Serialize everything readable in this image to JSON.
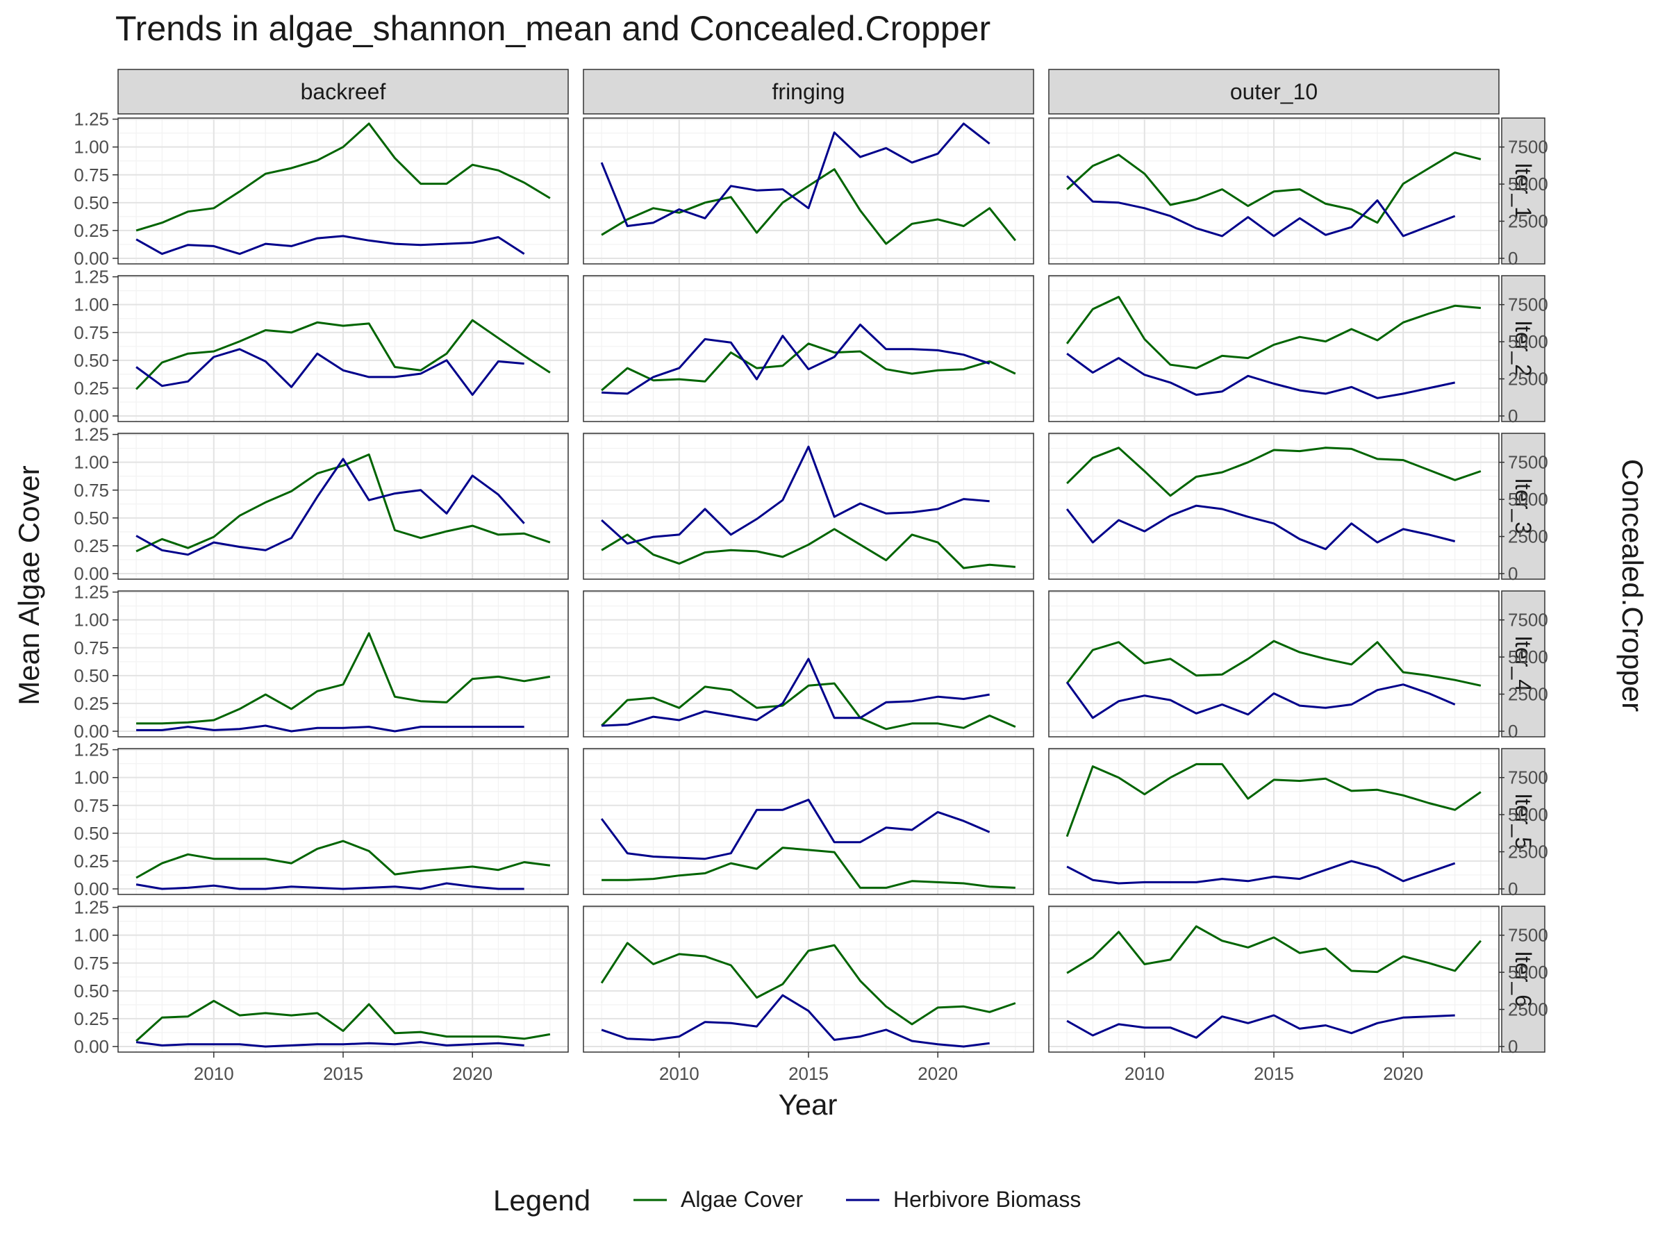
{
  "chart_data": {
    "type": "line",
    "title": "Trends in algae_shannon_mean and Concealed.Cropper",
    "xlabel": "Year",
    "ylabel": "Mean Algae Cover",
    "y2label": "Concealed.Cropper",
    "columns": [
      "backreef",
      "fringing",
      "outer_10"
    ],
    "rows": [
      "lter_1",
      "lter_2",
      "lter_3",
      "lter_4",
      "lter_5",
      "lter_6"
    ],
    "xlim": [
      2006.3,
      2023.7
    ],
    "x_ticks": [
      2010,
      2015,
      2020
    ],
    "ylim": [
      -0.05,
      1.26
    ],
    "y_ticks": [
      0,
      0.25,
      0.5,
      0.75,
      1.0,
      1.25
    ],
    "y_tick_labels": [
      "0.00",
      "0.25",
      "0.50",
      "0.75",
      "1.00",
      "1.25"
    ],
    "y2_ticks": [
      0,
      2500,
      5000,
      7500
    ],
    "y2_tick_labels": [
      "0",
      "2500",
      "5000",
      "7500"
    ],
    "y2_per_y": 7500,
    "grid": true,
    "legend": {
      "title": "Legend",
      "position": "bottom",
      "items": [
        {
          "label": "Algae Cover",
          "color": "#006400"
        },
        {
          "label": "Herbivore Biomass",
          "color": "#00008B"
        }
      ]
    },
    "algae_x": [
      2007,
      2008,
      2009,
      2010,
      2011,
      2012,
      2013,
      2014,
      2015,
      2016,
      2017,
      2018,
      2019,
      2020,
      2021,
      2022,
      2023
    ],
    "herb_x": [
      2007,
      2008,
      2009,
      2010,
      2011,
      2012,
      2013,
      2014,
      2015,
      2016,
      2017,
      2018,
      2019,
      2020,
      2021,
      2022
    ],
    "panels": [
      {
        "row": "lter_1",
        "col": "backreef",
        "algae": [
          0.25,
          0.32,
          0.42,
          0.45,
          0.6,
          0.76,
          0.81,
          0.88,
          1.0,
          1.21,
          0.9,
          0.67,
          0.67,
          0.84,
          0.79,
          0.68,
          0.54
        ],
        "herb": [
          0.17,
          0.04,
          0.12,
          0.11,
          0.04,
          0.13,
          0.11,
          0.18,
          0.2,
          0.16,
          0.13,
          0.12,
          0.13,
          0.14,
          0.19,
          0.04
        ]
      },
      {
        "row": "lter_1",
        "col": "fringing",
        "algae": [
          0.21,
          0.35,
          0.45,
          0.41,
          0.5,
          0.55,
          0.23,
          0.5,
          0.65,
          0.8,
          0.43,
          0.13,
          0.31,
          0.35,
          0.29,
          0.45,
          0.16
        ],
        "herb": [
          0.86,
          0.29,
          0.32,
          0.44,
          0.36,
          0.65,
          0.61,
          0.62,
          0.45,
          1.13,
          0.91,
          0.99,
          0.86,
          0.94,
          1.21,
          1.03
        ]
      },
      {
        "row": "lter_1",
        "col": "outer_10",
        "algae": [
          0.62,
          0.83,
          0.93,
          0.76,
          0.48,
          0.53,
          0.62,
          0.47,
          0.6,
          0.62,
          0.49,
          0.44,
          0.32,
          0.67,
          0.81,
          0.95,
          0.89
        ],
        "herb": [
          0.74,
          0.51,
          0.5,
          0.45,
          0.38,
          0.27,
          0.2,
          0.37,
          0.2,
          0.36,
          0.21,
          0.28,
          0.52,
          0.2,
          0.29,
          0.38
        ]
      },
      {
        "row": "lter_2",
        "col": "backreef",
        "algae": [
          0.24,
          0.48,
          0.56,
          0.58,
          0.67,
          0.77,
          0.75,
          0.84,
          0.81,
          0.83,
          0.44,
          0.41,
          0.56,
          0.86,
          0.7,
          0.54,
          0.39
        ],
        "herb": [
          0.44,
          0.27,
          0.31,
          0.53,
          0.6,
          0.49,
          0.26,
          0.56,
          0.41,
          0.35,
          0.35,
          0.38,
          0.5,
          0.19,
          0.49,
          0.47
        ]
      },
      {
        "row": "lter_2",
        "col": "fringing",
        "algae": [
          0.23,
          0.43,
          0.32,
          0.33,
          0.31,
          0.57,
          0.43,
          0.45,
          0.65,
          0.57,
          0.58,
          0.42,
          0.38,
          0.41,
          0.42,
          0.49,
          0.38
        ],
        "herb": [
          0.21,
          0.2,
          0.35,
          0.43,
          0.69,
          0.66,
          0.33,
          0.72,
          0.42,
          0.53,
          0.82,
          0.6,
          0.6,
          0.59,
          0.55,
          0.47
        ]
      },
      {
        "row": "lter_2",
        "col": "outer_10",
        "algae": [
          0.65,
          0.96,
          1.07,
          0.69,
          0.46,
          0.43,
          0.54,
          0.52,
          0.64,
          0.71,
          0.67,
          0.78,
          0.68,
          0.84,
          0.92,
          0.99,
          0.97
        ],
        "herb": [
          0.56,
          0.39,
          0.52,
          0.37,
          0.3,
          0.19,
          0.22,
          0.36,
          0.29,
          0.23,
          0.2,
          0.26,
          0.16,
          0.2,
          0.25,
          0.3
        ]
      },
      {
        "row": "lter_3",
        "col": "backreef",
        "algae": [
          0.2,
          0.31,
          0.23,
          0.33,
          0.52,
          0.64,
          0.74,
          0.9,
          0.97,
          1.07,
          0.39,
          0.32,
          0.38,
          0.43,
          0.35,
          0.36,
          0.28
        ],
        "herb": [
          0.34,
          0.21,
          0.17,
          0.28,
          0.24,
          0.21,
          0.32,
          0.69,
          1.03,
          0.66,
          0.72,
          0.75,
          0.54,
          0.88,
          0.71,
          0.45
        ]
      },
      {
        "row": "lter_3",
        "col": "fringing",
        "algae": [
          0.21,
          0.35,
          0.17,
          0.09,
          0.19,
          0.21,
          0.2,
          0.15,
          0.26,
          0.4,
          0.26,
          0.12,
          0.35,
          0.28,
          0.05,
          0.08,
          0.06
        ],
        "herb": [
          0.48,
          0.27,
          0.33,
          0.35,
          0.58,
          0.35,
          0.49,
          0.66,
          1.14,
          0.51,
          0.63,
          0.54,
          0.55,
          0.58,
          0.67,
          0.65
        ]
      },
      {
        "row": "lter_3",
        "col": "outer_10",
        "algae": [
          0.81,
          1.04,
          1.13,
          0.92,
          0.7,
          0.87,
          0.91,
          1.0,
          1.11,
          1.1,
          1.13,
          1.12,
          1.03,
          1.02,
          0.93,
          0.84,
          0.92
        ],
        "herb": [
          0.58,
          0.28,
          0.48,
          0.38,
          0.52,
          0.61,
          0.58,
          0.51,
          0.45,
          0.31,
          0.22,
          0.45,
          0.28,
          0.4,
          0.35,
          0.29
        ]
      },
      {
        "row": "lter_4",
        "col": "backreef",
        "algae": [
          0.07,
          0.07,
          0.08,
          0.1,
          0.2,
          0.33,
          0.2,
          0.36,
          0.42,
          0.88,
          0.31,
          0.27,
          0.26,
          0.47,
          0.49,
          0.45,
          0.49
        ],
        "herb": [
          0.01,
          0.01,
          0.04,
          0.01,
          0.02,
          0.05,
          0.0,
          0.03,
          0.03,
          0.04,
          0.0,
          0.04,
          0.04,
          0.04,
          0.04,
          0.04
        ]
      },
      {
        "row": "lter_4",
        "col": "fringing",
        "algae": [
          0.05,
          0.28,
          0.3,
          0.21,
          0.4,
          0.37,
          0.21,
          0.23,
          0.41,
          0.43,
          0.12,
          0.02,
          0.07,
          0.07,
          0.03,
          0.14,
          0.04
        ],
        "herb": [
          0.05,
          0.06,
          0.13,
          0.1,
          0.18,
          0.14,
          0.1,
          0.25,
          0.65,
          0.12,
          0.12,
          0.26,
          0.27,
          0.31,
          0.29,
          0.33
        ]
      },
      {
        "row": "lter_4",
        "col": "outer_10",
        "algae": [
          0.43,
          0.73,
          0.8,
          0.61,
          0.65,
          0.5,
          0.51,
          0.65,
          0.81,
          0.71,
          0.65,
          0.6,
          0.8,
          0.53,
          0.5,
          0.46,
          0.41
        ],
        "herb": [
          0.44,
          0.12,
          0.27,
          0.32,
          0.28,
          0.16,
          0.24,
          0.15,
          0.34,
          0.23,
          0.21,
          0.24,
          0.37,
          0.42,
          0.34,
          0.24
        ]
      },
      {
        "row": "lter_5",
        "col": "backreef",
        "algae": [
          0.1,
          0.23,
          0.31,
          0.27,
          0.27,
          0.27,
          0.23,
          0.36,
          0.43,
          0.34,
          0.13,
          0.16,
          0.18,
          0.2,
          0.17,
          0.24,
          0.21
        ],
        "herb": [
          0.04,
          0.0,
          0.01,
          0.03,
          0.0,
          0.0,
          0.02,
          0.01,
          0.0,
          0.01,
          0.02,
          0.0,
          0.05,
          0.02,
          0.0,
          0.0
        ]
      },
      {
        "row": "lter_5",
        "col": "fringing",
        "algae": [
          0.08,
          0.08,
          0.09,
          0.12,
          0.14,
          0.23,
          0.18,
          0.37,
          0.35,
          0.33,
          0.01,
          0.01,
          0.07,
          0.06,
          0.05,
          0.02,
          0.01
        ],
        "herb": [
          0.63,
          0.32,
          0.29,
          0.28,
          0.27,
          0.32,
          0.71,
          0.71,
          0.8,
          0.42,
          0.42,
          0.55,
          0.53,
          0.69,
          0.61,
          0.51
        ]
      },
      {
        "row": "lter_5",
        "col": "outer_10",
        "algae": [
          0.47,
          1.1,
          1.0,
          0.85,
          1.0,
          1.12,
          1.12,
          0.81,
          0.98,
          0.97,
          0.99,
          0.88,
          0.89,
          0.84,
          0.77,
          0.71,
          0.87
        ],
        "herb": [
          0.2,
          0.08,
          0.05,
          0.06,
          0.06,
          0.06,
          0.09,
          0.07,
          0.11,
          0.09,
          0.17,
          0.25,
          0.19,
          0.07,
          0.15,
          0.23
        ]
      },
      {
        "row": "lter_6",
        "col": "backreef",
        "algae": [
          0.05,
          0.26,
          0.27,
          0.41,
          0.28,
          0.3,
          0.28,
          0.3,
          0.14,
          0.38,
          0.12,
          0.13,
          0.09,
          0.09,
          0.09,
          0.07,
          0.11
        ],
        "herb": [
          0.04,
          0.01,
          0.02,
          0.02,
          0.02,
          0.0,
          0.01,
          0.02,
          0.02,
          0.03,
          0.02,
          0.04,
          0.01,
          0.02,
          0.03,
          0.01
        ]
      },
      {
        "row": "lter_6",
        "col": "fringing",
        "algae": [
          0.57,
          0.93,
          0.74,
          0.83,
          0.81,
          0.73,
          0.44,
          0.56,
          0.86,
          0.91,
          0.59,
          0.36,
          0.2,
          0.35,
          0.36,
          0.31,
          0.39
        ],
        "herb": [
          0.15,
          0.07,
          0.06,
          0.09,
          0.22,
          0.21,
          0.18,
          0.46,
          0.32,
          0.06,
          0.09,
          0.15,
          0.05,
          0.02,
          0.0,
          0.03
        ]
      },
      {
        "row": "lter_6",
        "col": "outer_10",
        "algae": [
          0.66,
          0.8,
          1.03,
          0.74,
          0.78,
          1.08,
          0.95,
          0.89,
          0.98,
          0.84,
          0.88,
          0.68,
          0.67,
          0.81,
          0.75,
          0.68,
          0.95
        ],
        "herb": [
          0.23,
          0.1,
          0.2,
          0.17,
          0.17,
          0.08,
          0.27,
          0.21,
          0.28,
          0.16,
          0.19,
          0.12,
          0.21,
          0.26,
          0.27,
          0.28
        ]
      }
    ]
  }
}
